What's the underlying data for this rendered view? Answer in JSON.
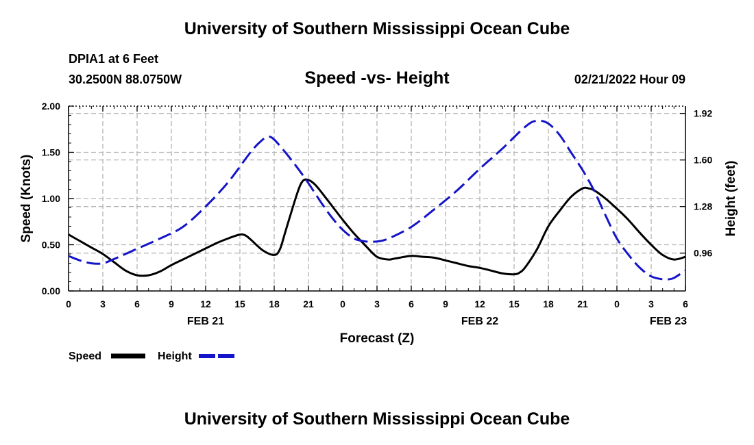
{
  "header": {
    "title": "University of Southern Mississippi Ocean Cube",
    "station": "DPIA1 at 6 Feet",
    "coords": "30.2500N  88.0750W",
    "subtitle": "Speed -vs- Height",
    "datetime": "02/21/2022 Hour 09"
  },
  "footer": {
    "title": "University of Southern Mississippi Ocean Cube"
  },
  "chart_data": {
    "type": "line",
    "title": "Speed -vs- Height",
    "xlabel": "Forecast (Z)",
    "ylabel": "Speed (Knots)",
    "y2label": "Height (feet)",
    "grid": true,
    "x_tick_labels": [
      "0",
      "3",
      "6",
      "9",
      "12",
      "15",
      "18",
      "21",
      "0",
      "3",
      "6",
      "9",
      "12",
      "15",
      "18",
      "21",
      "0",
      "3",
      "6"
    ],
    "x_range_hours": [
      0,
      54
    ],
    "date_labels": [
      {
        "hour": 12,
        "label": "FEB 21"
      },
      {
        "hour": 36,
        "label": "FEB 22"
      },
      {
        "hour": 52.5,
        "label": "FEB 23"
      }
    ],
    "y_ticks": [
      "0.00",
      "0.50",
      "1.00",
      "1.50",
      "2.00"
    ],
    "y_range": [
      0,
      2.0
    ],
    "y2_ticks": [
      "0.96",
      "1.28",
      "1.60",
      "1.92"
    ],
    "y2_tick_values": [
      0.96,
      1.28,
      1.6,
      1.92
    ],
    "y2_range": [
      0.7,
      1.97
    ],
    "series": [
      {
        "name": "Speed",
        "axis": "left",
        "color": "#000000",
        "style": "solid",
        "x": [
          0,
          1,
          2,
          3,
          4,
          5,
          6,
          7,
          8,
          9,
          10,
          11,
          12,
          13,
          14,
          15,
          15.5,
          16,
          17,
          18,
          18.5,
          19,
          20,
          20.5,
          21,
          21.5,
          22,
          23,
          24,
          25,
          26,
          27,
          28,
          28.5,
          29,
          30,
          31,
          32,
          33,
          34,
          35,
          36,
          37,
          38,
          39,
          39.5,
          40,
          41,
          42,
          43,
          44,
          45,
          45.5,
          46,
          47,
          48,
          49,
          50,
          51,
          52,
          53,
          54
        ],
        "values": [
          0.61,
          0.54,
          0.47,
          0.4,
          0.31,
          0.22,
          0.17,
          0.17,
          0.21,
          0.28,
          0.34,
          0.4,
          0.46,
          0.52,
          0.57,
          0.61,
          0.6,
          0.55,
          0.44,
          0.39,
          0.45,
          0.65,
          1.05,
          1.19,
          1.2,
          1.16,
          1.09,
          0.93,
          0.77,
          0.62,
          0.49,
          0.37,
          0.34,
          0.35,
          0.36,
          0.38,
          0.37,
          0.36,
          0.33,
          0.3,
          0.27,
          0.25,
          0.22,
          0.19,
          0.18,
          0.2,
          0.26,
          0.45,
          0.7,
          0.87,
          1.02,
          1.11,
          1.11,
          1.09,
          1.0,
          0.89,
          0.77,
          0.63,
          0.5,
          0.39,
          0.34,
          0.37
        ]
      },
      {
        "name": "Height",
        "axis": "right",
        "color": "#1414c8",
        "style": "dashed",
        "x": [
          0,
          1,
          2,
          3,
          4,
          6,
          8,
          10,
          12,
          14,
          16,
          17,
          17.5,
          18,
          19,
          20,
          21,
          22,
          23,
          24,
          25,
          26,
          27,
          28,
          30,
          32,
          34,
          36,
          38,
          40,
          41,
          42,
          43,
          44,
          45,
          46,
          47,
          48,
          49,
          50,
          51,
          52,
          52.5,
          53,
          54
        ],
        "values": [
          0.94,
          0.91,
          0.89,
          0.89,
          0.92,
          0.99,
          1.06,
          1.14,
          1.28,
          1.45,
          1.66,
          1.74,
          1.76,
          1.74,
          1.65,
          1.55,
          1.44,
          1.32,
          1.21,
          1.12,
          1.06,
          1.04,
          1.04,
          1.06,
          1.14,
          1.26,
          1.39,
          1.54,
          1.68,
          1.83,
          1.87,
          1.85,
          1.77,
          1.65,
          1.53,
          1.39,
          1.22,
          1.06,
          0.95,
          0.86,
          0.8,
          0.78,
          0.78,
          0.79,
          0.84
        ]
      }
    ],
    "legend": [
      {
        "label": "Speed",
        "color": "#000000",
        "style": "solid"
      },
      {
        "label": "Height",
        "color": "#1414c8",
        "style": "dashed"
      }
    ],
    "legend_position": "bottom-left"
  }
}
